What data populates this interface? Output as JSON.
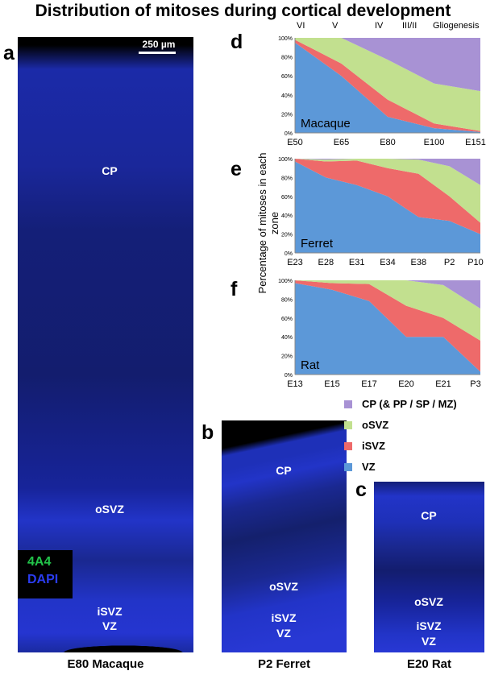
{
  "title": "Distribution of mitoses during cortical development",
  "panels": {
    "a": {
      "letter": "a",
      "caption": "E80 Macaque",
      "scale_bar": "250 µm",
      "zones": [
        "CP",
        "oSVZ",
        "iSVZ",
        "VZ"
      ],
      "stain_1": "4A4",
      "stain_2": "DAPI",
      "stain_1_color": "#22c34a",
      "stain_2_color": "#2a3cf0"
    },
    "b": {
      "letter": "b",
      "caption": "P2 Ferret",
      "zones": [
        "CP",
        "oSVZ",
        "iSVZ",
        "VZ"
      ]
    },
    "c": {
      "letter": "c",
      "caption": "E20 Rat",
      "zones": [
        "CP",
        "oSVZ",
        "iSVZ",
        "VZ"
      ]
    },
    "d": {
      "letter": "d"
    },
    "e": {
      "letter": "e"
    },
    "f": {
      "letter": "f"
    }
  },
  "stage_labels": [
    "VI",
    "V",
    "IV",
    "III/II",
    "Gliogenesis"
  ],
  "y_axis_label": "Percentage of mitoses in each zone",
  "legend": [
    {
      "label": "CP (& PP / SP / MZ)",
      "color": "#a892d4"
    },
    {
      "label": "oSVZ",
      "color": "#c2e08f"
    },
    {
      "label": "iSVZ",
      "color": "#ee6a6a"
    },
    {
      "label": "VZ",
      "color": "#5c98d8"
    }
  ],
  "colors": {
    "vz": "#5c98d8",
    "isvz": "#ee6a6a",
    "osvz": "#c2e08f",
    "cp": "#a892d4",
    "tissue": "#1d2a9a",
    "background": "#000000"
  },
  "chart_data": [
    {
      "type": "area",
      "species": "Macaque",
      "stacked": true,
      "categories": [
        "E50",
        "E65",
        "E80",
        "E100",
        "E151"
      ],
      "ylim": [
        0,
        100
      ],
      "yticks": [
        "0%",
        "20%",
        "40%",
        "60%",
        "80%",
        "100%"
      ],
      "series": [
        {
          "name": "VZ",
          "values": [
            95,
            60,
            17,
            5,
            1
          ]
        },
        {
          "name": "iSVZ",
          "values": [
            3,
            13,
            18,
            5,
            1
          ]
        },
        {
          "name": "oSVZ",
          "values": [
            2,
            27,
            42,
            42,
            42
          ]
        },
        {
          "name": "CP (& PP / SP / MZ)",
          "values": [
            0,
            0,
            23,
            48,
            56
          ]
        }
      ]
    },
    {
      "type": "area",
      "species": "Ferret",
      "stacked": true,
      "categories": [
        "E23",
        "E28",
        "E31",
        "E34",
        "E38",
        "P2",
        "P10"
      ],
      "ylim": [
        0,
        100
      ],
      "yticks": [
        "0%",
        "20%",
        "40%",
        "60%",
        "80%",
        "100%"
      ],
      "series": [
        {
          "name": "VZ",
          "values": [
            97,
            80,
            72,
            60,
            38,
            34,
            20
          ]
        },
        {
          "name": "iSVZ",
          "values": [
            3,
            17,
            26,
            30,
            46,
            26,
            12
          ]
        },
        {
          "name": "oSVZ",
          "values": [
            0,
            2,
            2,
            10,
            15,
            32,
            40
          ]
        },
        {
          "name": "CP (& PP / SP / MZ)",
          "values": [
            0,
            1,
            0,
            0,
            1,
            8,
            28
          ]
        }
      ]
    },
    {
      "type": "area",
      "species": "Rat",
      "stacked": true,
      "categories": [
        "E13",
        "E15",
        "E17",
        "E20",
        "E21",
        "P3"
      ],
      "ylim": [
        0,
        100
      ],
      "yticks": [
        "0%",
        "20%",
        "40%",
        "60%",
        "80%",
        "100%"
      ],
      "series": [
        {
          "name": "VZ",
          "values": [
            97,
            90,
            78,
            40,
            40,
            3
          ]
        },
        {
          "name": "iSVZ",
          "values": [
            3,
            7,
            18,
            33,
            20,
            33
          ]
        },
        {
          "name": "oSVZ",
          "values": [
            0,
            3,
            4,
            27,
            35,
            34
          ]
        },
        {
          "name": "CP (& PP / SP / MZ)",
          "values": [
            0,
            0,
            0,
            0,
            5,
            30
          ]
        }
      ]
    }
  ]
}
